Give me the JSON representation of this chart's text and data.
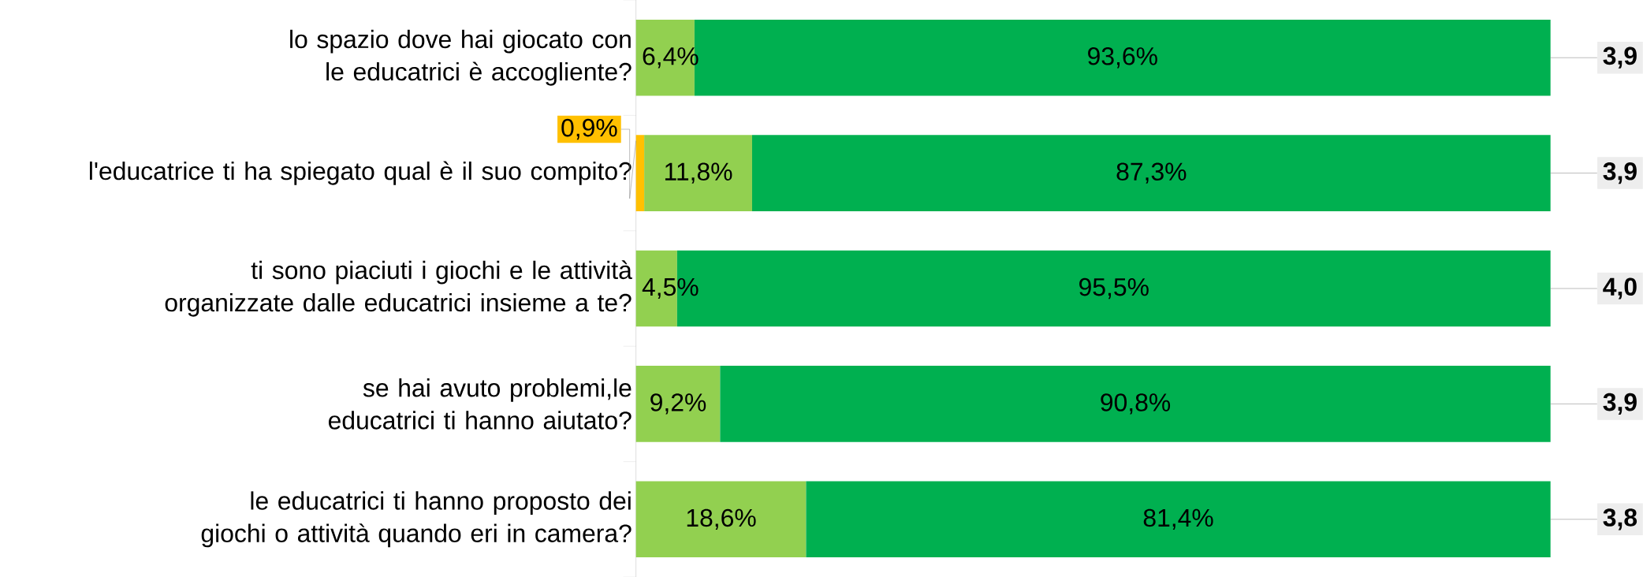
{
  "chart_data": {
    "type": "bar",
    "orientation": "horizontal",
    "stacked": true,
    "xlim": [
      0,
      100
    ],
    "tick_labels": "y",
    "categories": [
      "lo spazio dove hai giocato con le educatrici è accogliente?",
      "l'educatrice ti ha spiegato qual è il suo compito?",
      "ti sono piaciuti i giochi e le attività organizzate dalle educatrici insieme a te?",
      "se hai avuto problemi,le educatrici ti hanno aiutato?",
      "le educatrici ti hanno proposto dei giochi o attività quando eri in camera?"
    ],
    "series": [
      {
        "color": "#ffc000",
        "values": [
          null,
          0.9,
          null,
          null,
          null
        ],
        "value_labels": [
          null,
          "0,9%",
          null,
          null,
          null
        ]
      },
      {
        "color": "#92d050",
        "values": [
          6.4,
          11.8,
          4.5,
          9.2,
          18.6
        ],
        "value_labels": [
          "6,4%",
          "11,8%",
          "4,5%",
          "9,2%",
          "18,6%"
        ]
      },
      {
        "color": "#00b050",
        "values": [
          93.6,
          87.3,
          95.5,
          90.8,
          81.4
        ],
        "value_labels": [
          "93,6%",
          "87,3%",
          "95,5%",
          "90,8%",
          "81,4%"
        ]
      }
    ],
    "annotations": [
      "3,9",
      "3,9",
      "4,0",
      "3,9",
      "3,8"
    ]
  }
}
